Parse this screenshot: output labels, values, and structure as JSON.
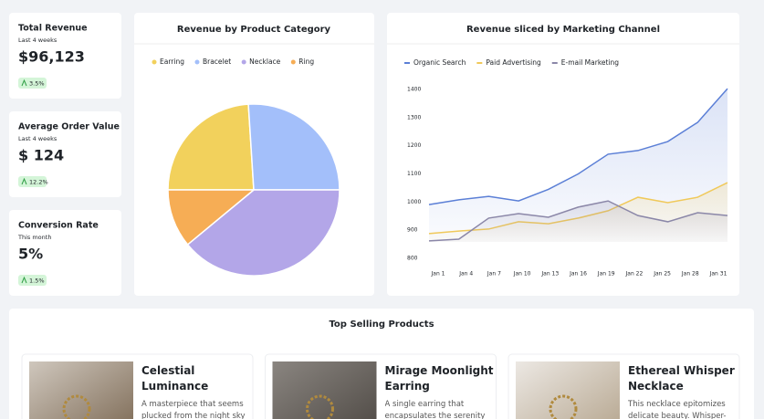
{
  "kpis": [
    {
      "title": "Total Revenue",
      "period": "Last 4 weeks",
      "value": "$96,123",
      "change": "3.5%"
    },
    {
      "title": "Average Order Value",
      "period": "Last 4 weeks",
      "value": "$ 124",
      "change": "12.2%"
    },
    {
      "title": "Conversion Rate",
      "period": "This month",
      "value": "5%",
      "change": "1.5%"
    }
  ],
  "chart_data": [
    {
      "type": "pie",
      "title": "Revenue by Product Category",
      "categories": [
        "Earring",
        "Bracelet",
        "Necklace",
        "Ring"
      ],
      "values": [
        24,
        26,
        39,
        11
      ],
      "colors": [
        "#f2d15c",
        "#a3bffa",
        "#b3a6e8",
        "#f6ad55"
      ],
      "legend": "top-left"
    },
    {
      "type": "line",
      "title": "Revenue sliced by Marketing Channel",
      "categories": [
        "Jan 1",
        "Jan 4",
        "Jan 7",
        "Jan 10",
        "Jan 13",
        "Jan 16",
        "Jan 19",
        "Jan 22",
        "Jan 25",
        "Jan 28",
        "Jan 31"
      ],
      "series": [
        {
          "name": "Organic Search",
          "color": "#5b7fd6",
          "values": [
            991,
            1008,
            1020,
            1004,
            1045,
            1100,
            1170,
            1183,
            1215,
            1283,
            1403
          ]
        },
        {
          "name": "Paid Advertising",
          "color": "#f0c95a",
          "values": [
            888,
            897,
            904,
            930,
            923,
            943,
            969,
            1017,
            998,
            1017,
            1069
          ]
        },
        {
          "name": "E-mail Marketing",
          "color": "#8b87a8",
          "values": [
            862,
            868,
            943,
            959,
            946,
            982,
            1004,
            952,
            930,
            962,
            952
          ]
        }
      ],
      "ylim": [
        800,
        1400
      ],
      "yticks": [
        800,
        900,
        1000,
        1100,
        1200,
        1300,
        1400
      ],
      "legend": "top-left",
      "area": true
    }
  ],
  "products": {
    "title": "Top Selling Products",
    "items": [
      {
        "name": "Celestial Luminance",
        "description": "A masterpiece that seems plucked from the night sky"
      },
      {
        "name": "Mirage Moonlight Earring",
        "description": "A single earring that encapsulates the serenity of"
      },
      {
        "name": "Ethereal Whisper Necklace",
        "description": "This necklace epitomizes delicate beauty. Whisper-thin"
      }
    ]
  }
}
